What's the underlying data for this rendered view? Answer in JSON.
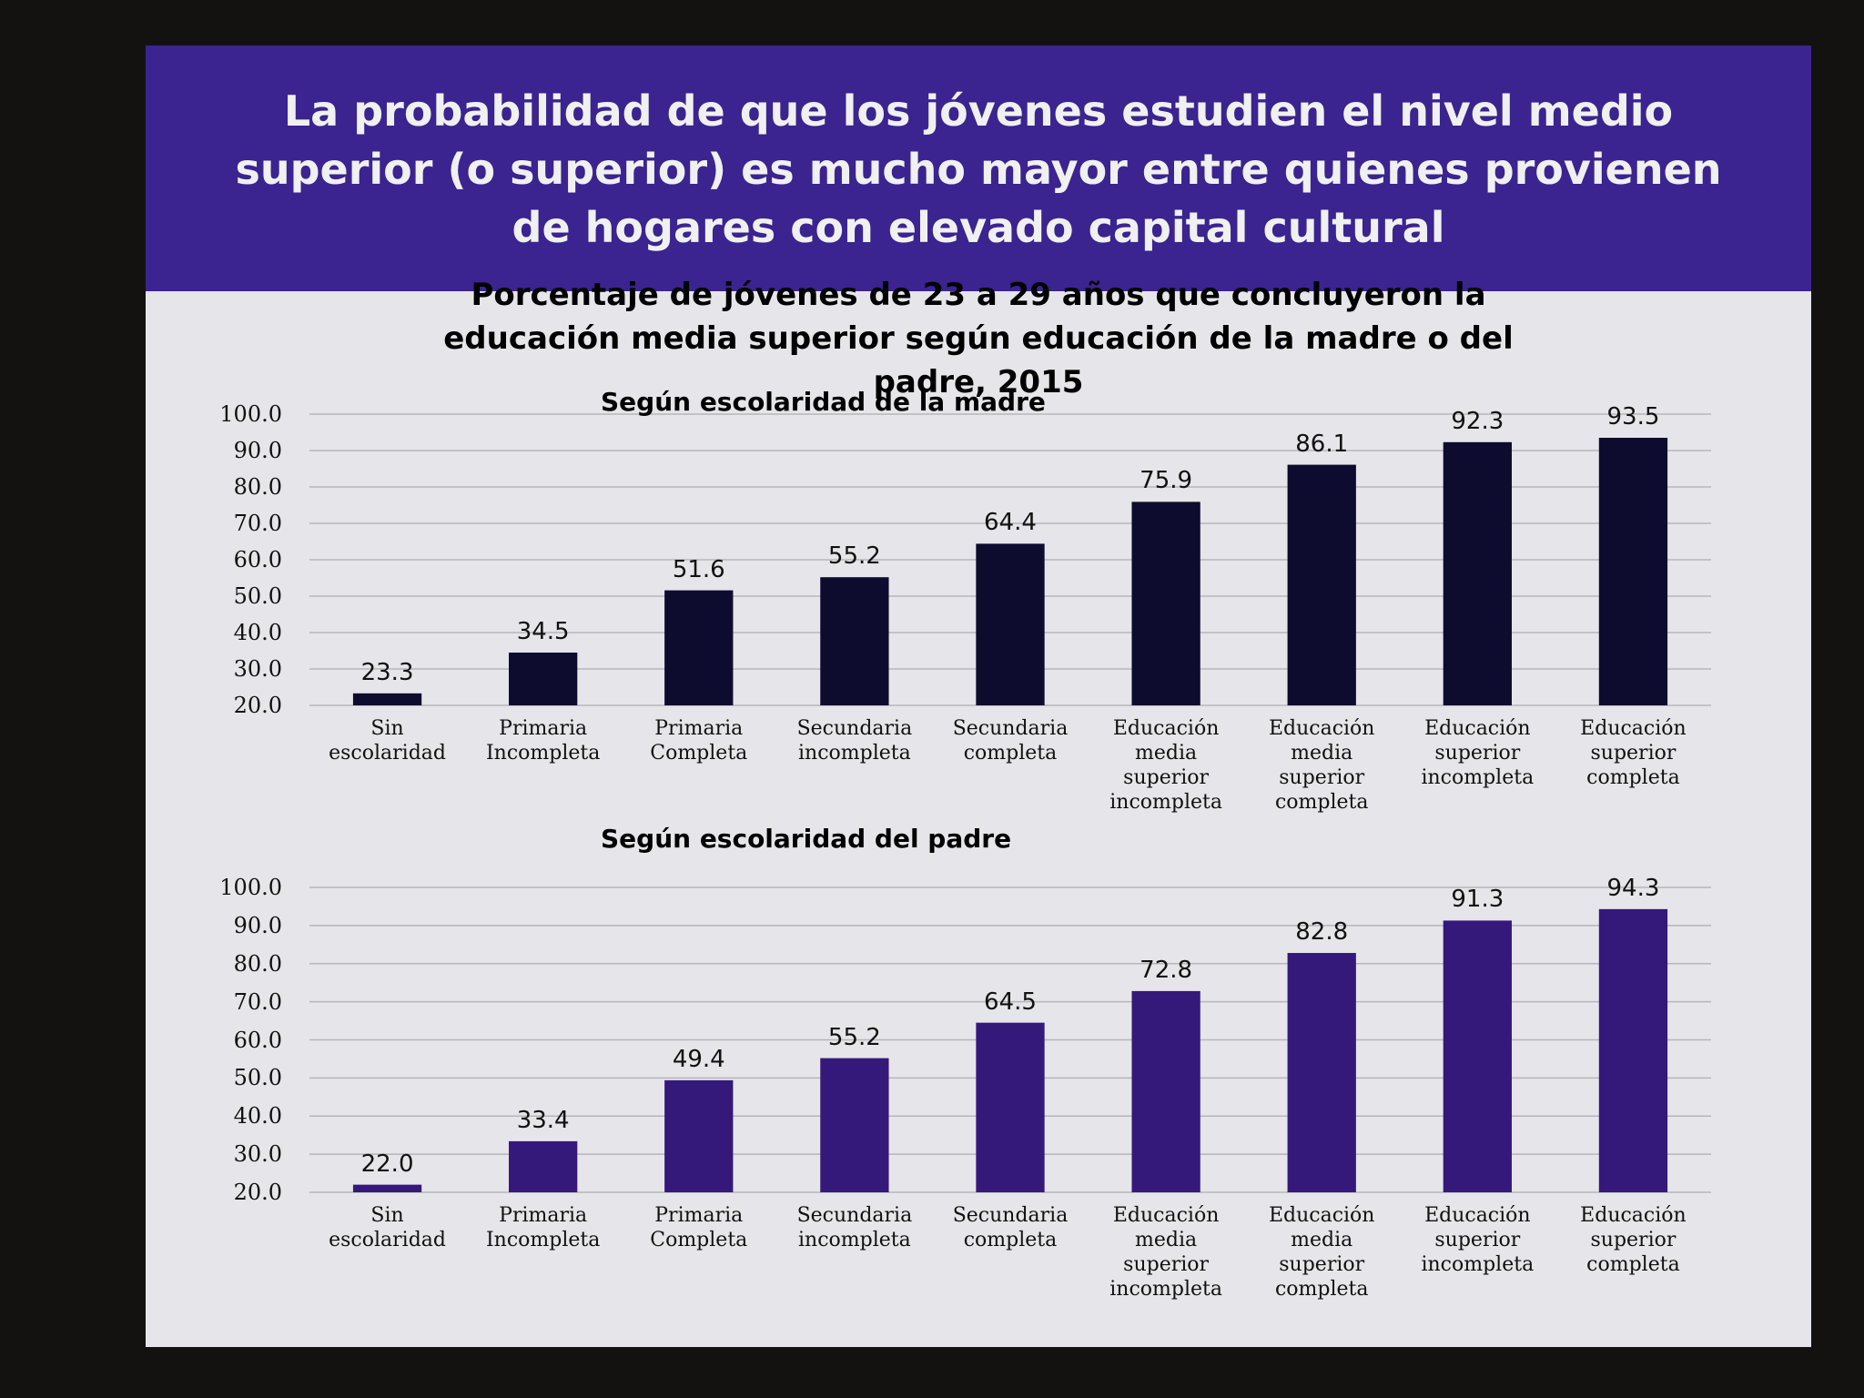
{
  "slide": {
    "title": "La probabilidad de que los jóvenes estudien el nivel medio superior (o superior) es mucho mayor entre quienes provienen de hogares con elevado capital cultural",
    "subtitle": "Porcentaje de jóvenes de 23 a 29 años que concluyeron la educación media superior según educación de la madre o del padre, 2015"
  },
  "chart_data": [
    {
      "type": "bar",
      "title": "Según escolaridad de la madre",
      "categories": [
        "Sin escolaridad",
        "Primaria Incompleta",
        "Primaria Completa",
        "Secundaria incompleta",
        "Secundaria completa",
        "Educación media superior incompleta",
        "Educación media superior completa",
        "Educación superior incompleta",
        "Educación superior completa"
      ],
      "values": [
        23.3,
        34.5,
        51.6,
        55.2,
        64.4,
        75.9,
        86.1,
        92.3,
        93.5
      ],
      "color": "#0d0b2e",
      "ylim": [
        20,
        100
      ],
      "yticks": [
        {
          "value": 20,
          "label": "20.0"
        },
        {
          "value": 30,
          "label": "30.0"
        },
        {
          "value": 40,
          "label": "40.0"
        },
        {
          "value": 50,
          "label": "50.0"
        },
        {
          "value": 60,
          "label": "60.0"
        },
        {
          "value": 70,
          "label": "70.0"
        },
        {
          "value": 80,
          "label": "80.0"
        },
        {
          "value": 90,
          "label": "90.0"
        },
        {
          "value": 100,
          "label": "100.0"
        }
      ],
      "grid": true
    },
    {
      "type": "bar",
      "title": "Según escolaridad del padre",
      "categories": [
        "Sin escolaridad",
        "Primaria Incompleta",
        "Primaria Completa",
        "Secundaria incompleta",
        "Secundaria completa",
        "Educación media superior incompleta",
        "Educación media superior completa",
        "Educación superior incompleta",
        "Educación superior completa"
      ],
      "values": [
        22.0,
        33.4,
        49.4,
        55.2,
        64.5,
        72.8,
        82.8,
        91.3,
        94.3
      ],
      "value_labels": [
        "22.0",
        "33.4",
        "49.4",
        "55.2",
        "64.5",
        "72.8",
        "82.8",
        "91.3",
        "94.3"
      ],
      "color": "#35197a",
      "ylim": [
        20,
        100
      ],
      "yticks": [
        {
          "value": 20,
          "label": "20.0"
        },
        {
          "value": 30,
          "label": "30.0"
        },
        {
          "value": 40,
          "label": "40.0"
        },
        {
          "value": 50,
          "label": "50.0"
        },
        {
          "value": 60,
          "label": "60.0"
        },
        {
          "value": 70,
          "label": "70.0"
        },
        {
          "value": 80,
          "label": "80.0"
        },
        {
          "value": 90,
          "label": "90.0"
        },
        {
          "value": 100,
          "label": "100.0"
        }
      ],
      "grid": true
    }
  ]
}
